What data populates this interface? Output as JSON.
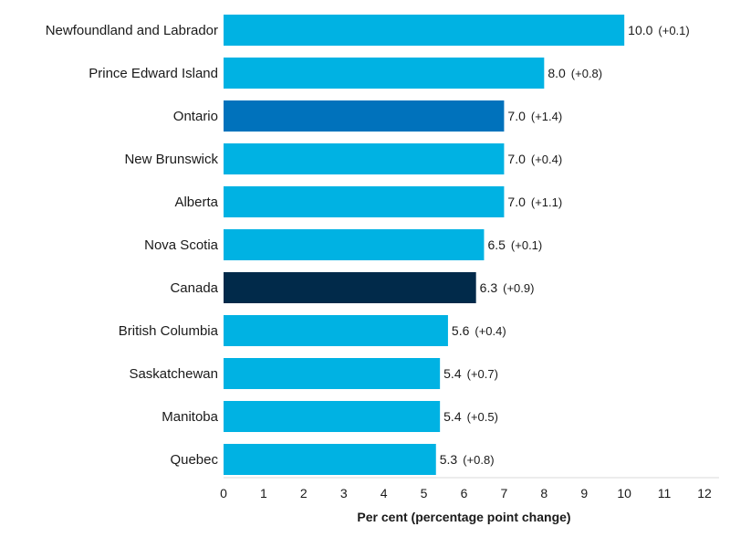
{
  "chart_data": {
    "type": "bar",
    "orientation": "horizontal",
    "xlabel": "Per cent (percentage point change)",
    "xlim": [
      0,
      12
    ],
    "xticks": [
      "0",
      "1",
      "2",
      "3",
      "4",
      "5",
      "6",
      "7",
      "8",
      "9",
      "10",
      "11",
      "12"
    ],
    "grid": false,
    "categories": [
      "Newfoundland and Labrador",
      "Prince Edward Island",
      "Ontario",
      "New Brunswick",
      "Alberta",
      "Nova Scotia",
      "Canada",
      "British Columbia",
      "Saskatchewan",
      "Manitoba",
      "Quebec"
    ],
    "values": [
      10.0,
      8.0,
      7.0,
      7.0,
      7.0,
      6.5,
      6.3,
      5.6,
      5.4,
      5.4,
      5.3
    ],
    "value_labels": [
      "10.0",
      "8.0",
      "7.0",
      "7.0",
      "7.0",
      "6.5",
      "6.3",
      "5.6",
      "5.4",
      "5.4",
      "5.3"
    ],
    "change_labels": [
      "(+0.1)",
      "(+0.8)",
      "(+1.4)",
      "(+0.4)",
      "(+1.1)",
      "(+0.1)",
      "(+0.9)",
      "(+0.4)",
      "(+0.7)",
      "(+0.5)",
      "(+0.8)"
    ],
    "bar_colors": [
      "#00b2e3",
      "#00b2e3",
      "#0072bc",
      "#00b2e3",
      "#00b2e3",
      "#00b2e3",
      "#012a4a",
      "#00b2e3",
      "#00b2e3",
      "#00b2e3",
      "#00b2e3"
    ]
  }
}
